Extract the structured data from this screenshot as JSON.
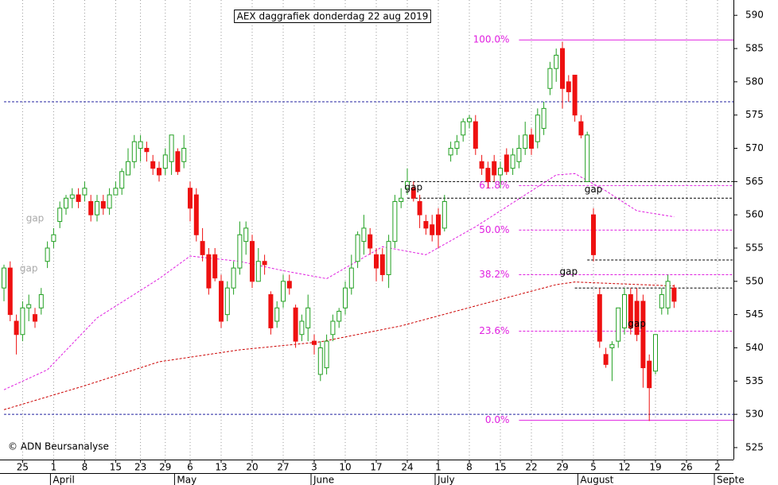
{
  "chart_data": {
    "type": "candlestick",
    "title": "AEX daggrafiek donderdag 22 aug 2019",
    "copyright": "© ADN Beursanalyse",
    "categories": [
      null,
      null,
      null,
      "25",
      null,
      null,
      null,
      null,
      "1",
      null,
      null,
      null,
      null,
      "8",
      null,
      null,
      null,
      null,
      "15",
      null,
      null,
      null,
      "23",
      null,
      null,
      null,
      "29",
      null,
      null,
      null,
      "6",
      null,
      null,
      null,
      null,
      "13",
      null,
      null,
      null,
      null,
      "20",
      null,
      null,
      null,
      null,
      "27",
      null,
      null,
      null,
      null,
      "3",
      null,
      null,
      null,
      null,
      "10",
      null,
      null,
      null,
      null,
      "17",
      null,
      null,
      null,
      null,
      "24",
      null,
      null,
      null,
      null,
      "1",
      null,
      null,
      null,
      null,
      "8",
      null,
      null,
      null,
      null,
      "15",
      null,
      null,
      null,
      null,
      "22",
      null,
      null,
      null,
      null,
      "29",
      null,
      null,
      null,
      null,
      "5",
      null,
      null,
      null,
      null,
      "12",
      null,
      null,
      null,
      null,
      "19",
      null,
      null,
      null,
      null,
      "26",
      null,
      null,
      null,
      null,
      "2",
      null,
      null
    ],
    "months": [
      {
        "label": "April",
        "start": 8
      },
      {
        "label": "May",
        "start": 28
      },
      {
        "label": "June",
        "start": 50
      },
      {
        "label": "July",
        "start": 70
      },
      {
        "label": "August",
        "start": 93
      },
      {
        "label": "Septe",
        "start": 115
      }
    ],
    "open": [
      549,
      552,
      544,
      542,
      546,
      545,
      546,
      553,
      556,
      559,
      561,
      562.5,
      563,
      563,
      562,
      560,
      562,
      561,
      563,
      564,
      566,
      568,
      570,
      570,
      568,
      567,
      567,
      568,
      569.5,
      568,
      564,
      563,
      556,
      554,
      554,
      550,
      545,
      549,
      552,
      556,
      556,
      550,
      553,
      548,
      544,
      547,
      550,
      546,
      542,
      543,
      541,
      536,
      537,
      542,
      544,
      546,
      549,
      553,
      556,
      557,
      554,
      554,
      551,
      556,
      562,
      564,
      564,
      562,
      559,
      558.5,
      560,
      558,
      569,
      570,
      572,
      574,
      574,
      568,
      567,
      568,
      566,
      569,
      567,
      568,
      570,
      572,
      571,
      573,
      579,
      582,
      585,
      580,
      581,
      574,
      565,
      560,
      548,
      539,
      540,
      541,
      543,
      548,
      547,
      547,
      538,
      536.5,
      546,
      546,
      549,
      null,
      null,
      null,
      null,
      null,
      null,
      null,
      null,
      null
    ],
    "high": [
      552.5,
      553,
      545,
      547,
      548,
      546,
      549,
      556,
      558,
      562,
      563,
      564,
      564,
      565,
      563,
      563,
      563,
      564,
      565,
      567,
      570,
      572,
      572,
      571,
      569,
      568,
      570,
      572,
      570,
      572,
      565,
      564,
      558,
      555,
      555,
      551,
      550,
      553,
      559,
      559,
      557,
      555,
      554,
      548.5,
      547,
      551,
      551,
      546.5,
      545,
      548,
      542,
      541,
      542,
      545,
      546,
      550,
      554,
      557.5,
      560,
      558,
      555,
      555,
      557,
      563,
      564,
      567,
      565,
      563,
      560,
      560,
      561,
      563,
      571,
      572,
      574.5,
      575,
      575,
      569,
      568,
      569,
      568,
      570,
      570,
      572,
      574,
      573,
      576,
      577,
      583,
      585,
      586,
      581,
      581,
      575,
      572.5,
      561,
      549,
      540,
      541,
      546,
      549,
      549,
      549,
      548,
      539,
      542,
      549,
      551,
      549.5,
      null,
      null,
      null,
      null,
      null,
      null,
      null,
      null,
      null
    ],
    "low": [
      547,
      544,
      539,
      541,
      544,
      543,
      545,
      552,
      555,
      558,
      560,
      561,
      561,
      562,
      559,
      559,
      560,
      560,
      563,
      563,
      566,
      567,
      568,
      568,
      566,
      565,
      566,
      566,
      566,
      567,
      559,
      556,
      553,
      548,
      550,
      543,
      544,
      548,
      551,
      554,
      549,
      550,
      551,
      542,
      543,
      546,
      548,
      540,
      541,
      541,
      539,
      535,
      536,
      541,
      543,
      545,
      548,
      552,
      554,
      554,
      550,
      550,
      549,
      555,
      561,
      563,
      562,
      558,
      557,
      556,
      555,
      557.5,
      568,
      569,
      571,
      573,
      569,
      566,
      564,
      565,
      564,
      566,
      566,
      567,
      569,
      569,
      570,
      572,
      578,
      580,
      576,
      577,
      574,
      571.5,
      565,
      553,
      540,
      537,
      535,
      540,
      542,
      542,
      541,
      534,
      529,
      536,
      545,
      545,
      546,
      null,
      null,
      null,
      null,
      null,
      null,
      null,
      null,
      null
    ],
    "close": [
      552,
      545,
      542,
      546,
      546.5,
      544,
      548,
      555,
      557,
      561,
      562.5,
      563,
      562,
      564,
      560,
      562,
      561,
      563,
      564,
      566.5,
      568,
      571,
      571,
      569.5,
      567,
      566,
      569,
      572,
      566.5,
      570,
      561,
      557,
      554,
      549,
      550.5,
      544,
      549,
      552,
      557,
      558,
      550,
      553,
      552.5,
      543,
      546,
      550,
      549,
      541,
      544,
      546,
      540.5,
      540,
      541,
      544,
      545.5,
      549,
      552,
      557,
      558,
      555,
      552,
      551,
      556,
      562,
      562.5,
      565,
      562.5,
      560,
      558,
      557,
      557,
      562,
      570,
      571,
      574,
      574.5,
      570,
      567,
      565,
      566,
      567,
      566.5,
      569,
      570,
      572,
      570,
      575,
      576,
      582,
      584,
      579,
      578.5,
      575,
      572,
      572,
      554,
      541,
      537.5,
      540.5,
      546,
      548,
      543,
      542,
      537,
      534,
      542,
      548,
      550,
      547,
      null,
      null,
      null,
      null,
      null,
      null,
      null,
      null,
      null
    ],
    "up_color": "#22a022",
    "down_color": "#ee1111",
    "moving_averages": [
      {
        "color": "#e020e0",
        "x": [
          0,
          7,
          15,
          25,
          30,
          38,
          45,
          52,
          61,
          68,
          76,
          83,
          89,
          92,
          97,
          102,
          108
        ],
        "values": [
          533.7,
          536.7,
          544.5,
          550.4,
          553.8,
          553,
          551.6,
          550.4,
          555.2,
          554,
          558.2,
          562.4,
          566,
          566.2,
          563.6,
          560.6,
          559.7
        ]
      },
      {
        "color": "#cc0000",
        "x": [
          0,
          13,
          25,
          38,
          51,
          64,
          76,
          89,
          92,
          108
        ],
        "values": [
          530.7,
          534.3,
          537.9,
          539.7,
          540.9,
          543.3,
          546.3,
          549.5,
          549.9,
          549.3
        ]
      }
    ],
    "levels": [
      {
        "value": 577,
        "from": 0,
        "color": "#2020a0"
      },
      {
        "value": 530,
        "from": 0,
        "color": "#2020a0"
      },
      {
        "value": 565,
        "from": 64,
        "color": "#000000"
      },
      {
        "value": 562.5,
        "from": 65,
        "color": "#000000"
      },
      {
        "value": 553.2,
        "from": 94,
        "color": "#000000"
      },
      {
        "value": 549,
        "from": 92,
        "color": "#000000"
      }
    ],
    "fibonacci": {
      "from": 83,
      "color": "#e020e0",
      "levels": [
        {
          "label": "100.0%",
          "value": 586.3,
          "solid": true
        },
        {
          "label": "61.8%",
          "value": 564.4
        },
        {
          "label": "50.0%",
          "value": 557.7
        },
        {
          "label": "38.2%",
          "value": 551
        },
        {
          "label": "23.6%",
          "value": 542.5
        },
        {
          "label": "0.0%",
          "value": 529.1,
          "solid": true
        }
      ]
    },
    "annotations": [
      {
        "text": "gap",
        "x": 5,
        "y": 559.4,
        "color": "#aaaaaa"
      },
      {
        "text": "gap",
        "x": 4,
        "y": 551.9,
        "color": "#aaaaaa"
      },
      {
        "text": "gap",
        "x": 66,
        "y": 564.1,
        "color": "#000000"
      },
      {
        "text": "gap",
        "x": 95,
        "y": 563.8,
        "color": "#000000"
      },
      {
        "text": "gap",
        "x": 91,
        "y": 551.4,
        "color": "#000000"
      },
      {
        "text": "gap",
        "x": 102,
        "y": 543.6,
        "color": "#000000"
      }
    ],
    "ylim": [
      523.2,
      592.3
    ],
    "yticks": [
      525,
      530,
      535,
      540,
      545,
      550,
      555,
      560,
      565,
      570,
      575,
      580,
      585,
      590
    ]
  }
}
